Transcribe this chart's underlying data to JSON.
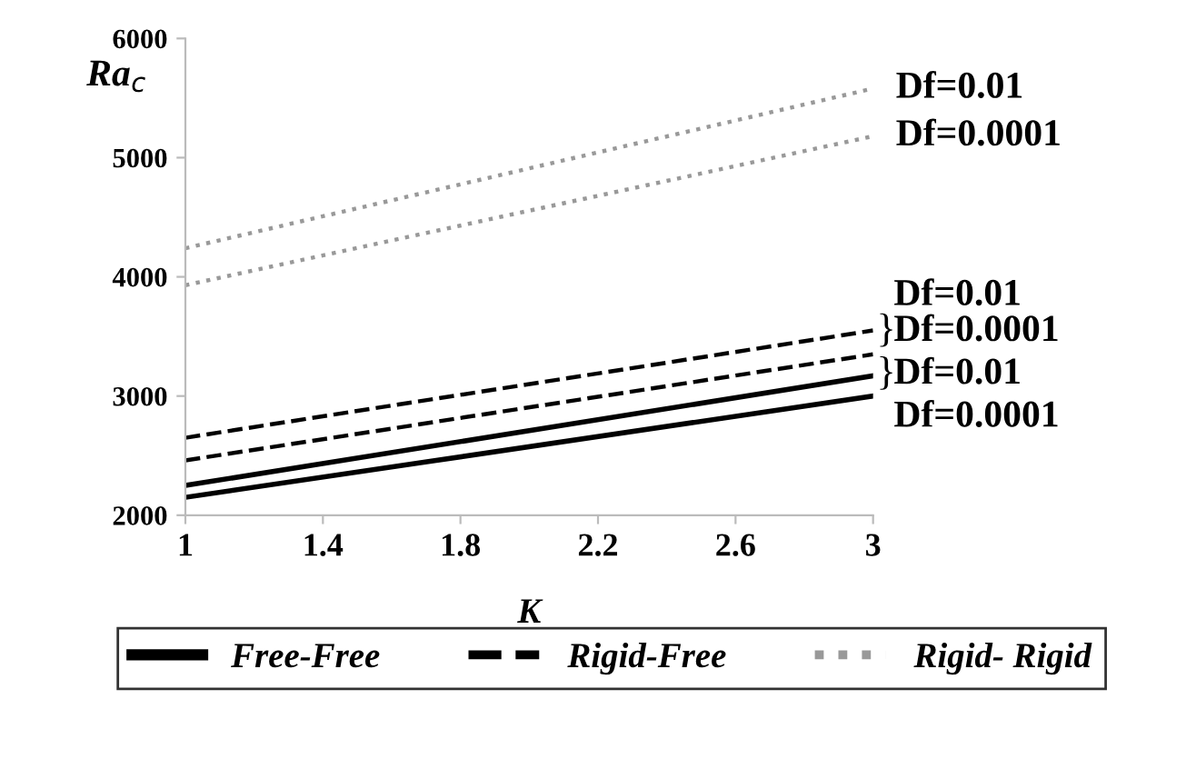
{
  "chart_data": {
    "type": "line",
    "xlabel": "K",
    "ylabel": "Ra$_{c}$",
    "x": [
      1,
      3
    ],
    "xlim": [
      1,
      3
    ],
    "xticks": [
      1,
      1.4,
      1.8,
      2.2,
      2.6,
      3
    ],
    "ylim": [
      2000,
      6000
    ],
    "yticks": [
      2000,
      3000,
      4000,
      5000,
      6000
    ],
    "grid": false,
    "legend": "bottom",
    "marker": "none",
    "series": [
      {
        "name": "Free-Free",
        "color": "#000000",
        "line_style": "solid",
        "values": [
          2250,
          3170
        ]
      },
      {
        "color": "#000000",
        "line_style": "solid",
        "values": [
          2150,
          3000
        ]
      },
      {
        "name": "Rigid-Free",
        "color": "#000000",
        "line_style": "dashed",
        "values": [
          2650,
          3550
        ]
      },
      {
        "color": "#000000",
        "line_style": "dashed",
        "values": [
          2460,
          3350
        ]
      },
      {
        "name": "Rigid- Rigid",
        "color": "#999999",
        "line_style": "dotted",
        "values": [
          4240,
          5580
        ]
      },
      {
        "color": "#999999",
        "line_style": "dotted",
        "values": [
          3930,
          5180
        ]
      }
    ],
    "annotations": [
      {
        "text": "Df=0.01",
        "x": 3,
        "y": 5580
      },
      {
        "text": "Df=0.0001",
        "x": 3,
        "y": 5180
      },
      "Df=0.01",
      "Df=0.0001",
      "Df=0.01",
      "Df=0.0001",
      "}",
      "}"
    ]
  }
}
